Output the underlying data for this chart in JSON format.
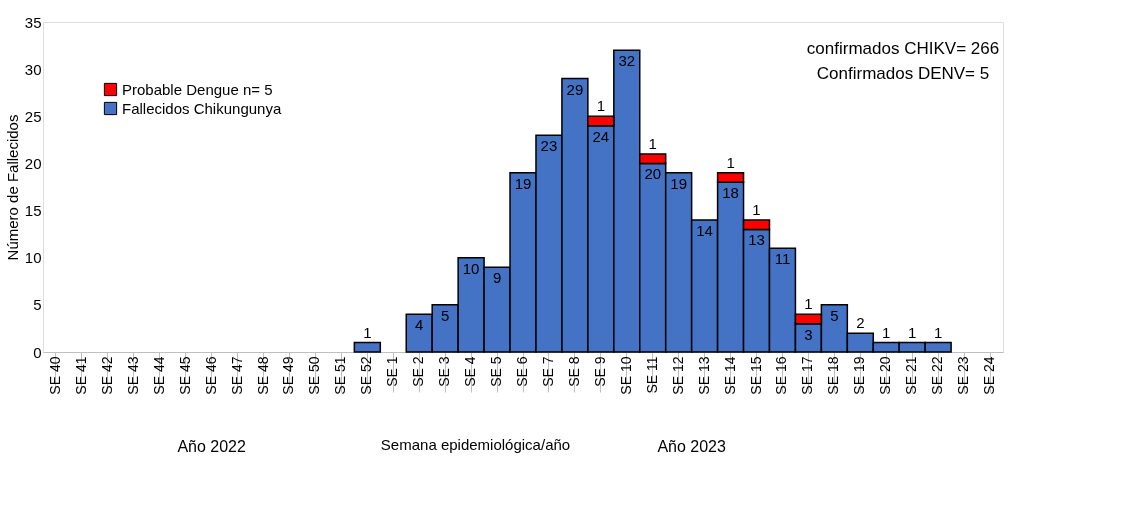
{
  "chart_data": {
    "type": "bar",
    "stacked": true,
    "ylabel": "Número  de Fallecidos",
    "xlabel": "Semana epidemiológica/año",
    "categories": [
      "SE 40",
      "SE 41",
      "SE 42",
      "SE 43",
      "SE 44",
      "SE 45",
      "SE 46",
      "SE 47",
      "SE 48",
      "SE 49",
      "SE 50",
      "SE 51",
      "SE 52",
      "SE 1",
      "SE 2",
      "SE 3",
      "SE 4",
      "SE 5",
      "SE 6",
      "SE 7",
      "SE 8",
      "SE 9",
      "SE 10",
      "SE 11",
      "SE 12",
      "SE 13",
      "SE 14",
      "SE 15",
      "SE 16",
      "SE 17",
      "SE 18",
      "SE 19",
      "SE 20",
      "SE 21",
      "SE 22",
      "SE 23",
      "SE 24"
    ],
    "series": [
      {
        "name": "Fallecidos Chikungunya",
        "color": "#4472c4",
        "values": [
          null,
          null,
          null,
          null,
          null,
          null,
          null,
          null,
          null,
          null,
          null,
          null,
          1,
          null,
          4,
          5,
          10,
          9,
          19,
          23,
          29,
          24,
          32,
          20,
          19,
          14,
          18,
          13,
          11,
          3,
          5,
          2,
          1,
          1,
          1,
          null,
          null
        ]
      },
      {
        "name": "Probable Dengue n= 5",
        "color": "#ff0000",
        "values": [
          null,
          null,
          null,
          null,
          null,
          null,
          null,
          null,
          null,
          null,
          null,
          null,
          null,
          null,
          null,
          null,
          null,
          null,
          null,
          null,
          null,
          1,
          null,
          1,
          null,
          null,
          1,
          1,
          null,
          1,
          null,
          null,
          null,
          null,
          null,
          null,
          null
        ]
      }
    ],
    "ylim": [
      0,
      35
    ],
    "yticks": [
      0,
      5,
      10,
      15,
      20,
      25,
      30,
      35
    ],
    "grid": false,
    "legend": "top left",
    "data_labels": true,
    "annotations": [
      "confirmados CHIKV= 266",
      "Confirmados DENV= 5",
      {
        "text": "Año 2022"
      },
      {
        "text": "Año 2023"
      }
    ]
  }
}
